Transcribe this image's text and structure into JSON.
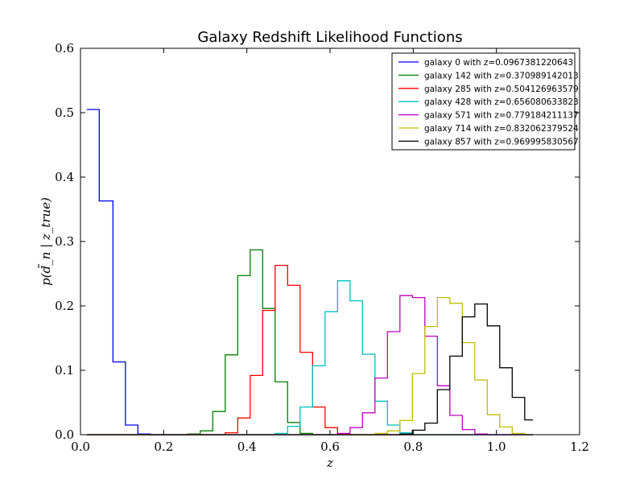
{
  "chart_data": {
    "type": "line",
    "title": "Galaxy Redshift Likelihood Functions",
    "xlabel": "z",
    "ylabel": "p(d̃_n | z_true)",
    "xlim": [
      0.0,
      1.2
    ],
    "ylim": [
      0.0,
      0.6
    ],
    "xticks": [
      "0.0",
      "0.2",
      "0.4",
      "0.6",
      "0.8",
      "1.0",
      "1.2"
    ],
    "yticks": [
      "0.0",
      "0.1",
      "0.2",
      "0.3",
      "0.4",
      "0.5",
      "0.6"
    ],
    "grid": false,
    "legend_position": "top-right",
    "bin_edges": [
      0.015,
      0.045,
      0.078,
      0.108,
      0.138,
      0.168,
      0.198,
      0.228,
      0.258,
      0.288,
      0.318,
      0.348,
      0.378,
      0.408,
      0.438,
      0.468,
      0.498,
      0.528,
      0.558,
      0.588,
      0.618,
      0.648,
      0.678,
      0.708,
      0.738,
      0.768,
      0.798,
      0.828,
      0.858,
      0.888,
      0.918,
      0.948,
      0.978,
      1.008,
      1.038,
      1.068,
      1.088
    ],
    "series": [
      {
        "name": "galaxy 0 with z=0.0967381220643",
        "color": "#0000ff",
        "values": [
          0.505,
          0.363,
          0.113,
          0.015,
          0.001,
          0,
          0,
          0,
          0,
          0,
          0,
          0,
          0,
          0,
          0,
          0,
          0,
          0,
          0,
          0,
          0,
          0,
          0,
          0,
          0,
          0,
          0,
          0,
          0,
          0,
          0,
          0,
          0,
          0,
          0,
          0
        ]
      },
      {
        "name": "galaxy 142 with z=0.370989142013",
        "color": "#008000",
        "values": [
          0,
          0,
          0,
          0,
          0,
          0,
          0,
          0,
          0.001,
          0.006,
          0.036,
          0.124,
          0.247,
          0.287,
          0.196,
          0.082,
          0.019,
          0.002,
          0,
          0,
          0,
          0,
          0,
          0,
          0,
          0,
          0,
          0,
          0,
          0,
          0,
          0,
          0,
          0,
          0,
          0
        ]
      },
      {
        "name": "galaxy 285 with z=0.504126963579",
        "color": "#ff0000",
        "values": [
          0,
          0,
          0,
          0,
          0,
          0,
          0,
          0,
          0,
          0,
          0,
          0.003,
          0.026,
          0.092,
          0.193,
          0.263,
          0.232,
          0.128,
          0.043,
          0.011,
          0.001,
          0,
          0,
          0,
          0,
          0,
          0,
          0,
          0,
          0,
          0,
          0,
          0,
          0,
          0,
          0
        ]
      },
      {
        "name": "galaxy 428 with z=0.656080633823",
        "color": "#00bfbf",
        "values": [
          0,
          0,
          0,
          0,
          0,
          0,
          0,
          0,
          0,
          0,
          0,
          0,
          0,
          0,
          0,
          0.002,
          0.013,
          0.043,
          0.107,
          0.191,
          0.239,
          0.208,
          0.125,
          0.052,
          0.015,
          0.003,
          0,
          0,
          0,
          0,
          0,
          0,
          0,
          0,
          0,
          0
        ]
      },
      {
        "name": "galaxy 571 with z=0.779184211137",
        "color": "#bf00bf",
        "values": [
          0,
          0,
          0,
          0,
          0,
          0,
          0,
          0,
          0,
          0,
          0,
          0,
          0,
          0,
          0,
          0,
          0,
          0,
          0,
          0,
          0.002,
          0.011,
          0.034,
          0.088,
          0.16,
          0.216,
          0.213,
          0.153,
          0.076,
          0.03,
          0.008,
          0.001,
          0,
          0,
          0,
          0
        ]
      },
      {
        "name": "galaxy 714 with z=0.832062379524",
        "color": "#bfbf00",
        "values": [
          0,
          0,
          0,
          0,
          0,
          0,
          0,
          0,
          0,
          0,
          0,
          0,
          0,
          0,
          0,
          0,
          0,
          0,
          0,
          0,
          0,
          0,
          0,
          0.002,
          0.006,
          0.022,
          0.095,
          0.168,
          0.213,
          0.204,
          0.143,
          0.085,
          0.031,
          0.012,
          0.002,
          0
        ]
      },
      {
        "name": "galaxy 857 with z=0.969995830567",
        "color": "#000000",
        "values": [
          0,
          0,
          0,
          0,
          0,
          0,
          0,
          0,
          0,
          0,
          0,
          0,
          0,
          0,
          0,
          0,
          0,
          0,
          0,
          0,
          0,
          0,
          0,
          0,
          0,
          0.001,
          0.007,
          0.018,
          0.07,
          0.122,
          0.183,
          0.203,
          0.169,
          0.104,
          0.058,
          0.023
        ]
      }
    ]
  }
}
